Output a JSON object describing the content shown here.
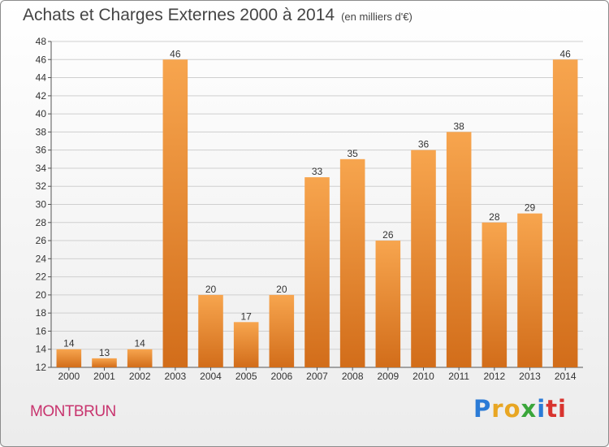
{
  "header": {
    "title": "Achats et Charges Externes 2000 à 2014",
    "unit": "(en milliers d'€)"
  },
  "footer": {
    "commune": "MONTBRUN",
    "logo_letters": [
      "P",
      "r",
      "o",
      "x",
      "i",
      "ti"
    ]
  },
  "colors": {
    "bar_light": "#f7a54e",
    "bar_dark": "#d26d1a",
    "grid": "#cfcfcf",
    "commune": "#c8346e"
  },
  "chart_data": {
    "type": "bar",
    "title": "Achats et Charges Externes 2000 à 2014",
    "subtitle": "(en milliers d'€)",
    "categories": [
      "2000",
      "2001",
      "2002",
      "2003",
      "2004",
      "2005",
      "2006",
      "2007",
      "2008",
      "2009",
      "2010",
      "2011",
      "2012",
      "2013",
      "2014"
    ],
    "values": [
      14,
      13,
      14,
      46,
      20,
      17,
      20,
      33,
      35,
      26,
      36,
      38,
      28,
      29,
      46
    ],
    "ylim": [
      12,
      48
    ],
    "yticks": [
      12,
      14,
      16,
      18,
      20,
      22,
      24,
      26,
      28,
      30,
      32,
      34,
      36,
      38,
      40,
      42,
      44,
      46,
      48
    ],
    "grid": true,
    "xlabel": "",
    "ylabel": ""
  }
}
